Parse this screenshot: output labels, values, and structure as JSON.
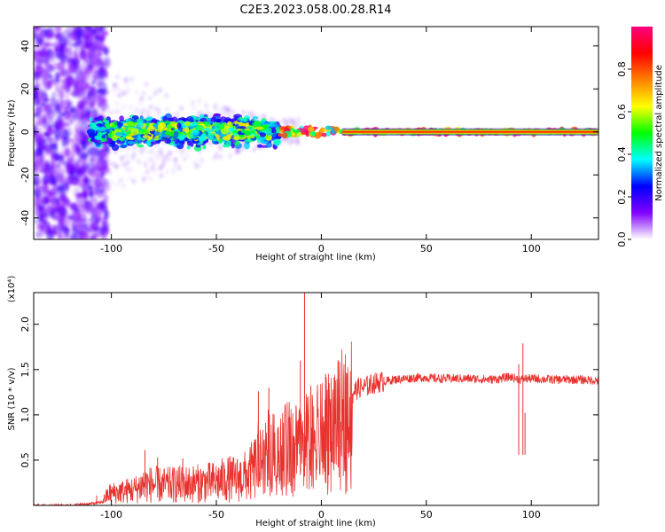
{
  "title": "C2E3.2023.058.00.28.R14",
  "chart_data": [
    {
      "type": "heatmap",
      "name": "spectrogram",
      "xlabel": "Height of straight line (km)",
      "ylabel": "Frequency (Hz)",
      "xlim": [
        -137,
        132
      ],
      "ylim": [
        -50,
        49
      ],
      "xticks": [
        -100,
        -50,
        0,
        50,
        100
      ],
      "xtick_labels": [
        "-100",
        "-50",
        "0",
        "50",
        "100"
      ],
      "yticks": [
        -40,
        -20,
        0,
        20,
        40
      ],
      "ytick_labels": [
        "-40",
        "-20",
        "0",
        "20",
        "40"
      ],
      "colorbar": {
        "label": "Normalized spectral amplitude",
        "range": [
          0,
          1
        ],
        "ticks": [
          0.0,
          0.2,
          0.4,
          0.6,
          0.8
        ],
        "tick_labels": [
          "0.0",
          "0.2",
          "0.4",
          "0.6",
          "0.8"
        ],
        "colors": [
          "#ffffff",
          "#8000ff",
          "#0000ff",
          "#00ffff",
          "#00ff00",
          "#ffff00",
          "#ff8000",
          "#ff0000",
          "#ff0080"
        ]
      },
      "regions": [
        {
          "x_range": [
            -137,
            -102
          ],
          "y_range": [
            -50,
            49
          ],
          "amplitude": 0.15,
          "note": "broadband noise"
        },
        {
          "x_range": [
            -110,
            -20
          ],
          "y_range": [
            -8,
            8
          ],
          "amplitude": 0.35
        },
        {
          "x_range": [
            -100,
            -25
          ],
          "y_range": [
            -3,
            4
          ],
          "amplitude": 0.5
        },
        {
          "x_range": [
            -20,
            10
          ],
          "y_range": [
            -2,
            2
          ],
          "amplitude": 0.75
        },
        {
          "x_range": [
            10,
            132
          ],
          "y_range": [
            -1,
            1
          ],
          "amplitude": 0.95
        }
      ]
    },
    {
      "type": "line",
      "name": "snr",
      "xlabel": "Height of straight line (km)",
      "ylabel": "SNR (10 * v/v)",
      "multiplier": "(x10⁴)",
      "xlim": [
        -137,
        132
      ],
      "ylim": [
        0,
        23500
      ],
      "xticks": [
        -100,
        -50,
        0,
        50,
        100
      ],
      "xtick_labels": [
        "-100",
        "-50",
        "0",
        "50",
        "100"
      ],
      "yticks": [
        5000,
        10000,
        15000,
        20000
      ],
      "ytick_labels": [
        "0.5",
        "1.0",
        "1.5",
        "2.0"
      ],
      "color": "#e8322e",
      "series": [
        {
          "x": [
            -137,
            -120,
            -105,
            -101,
            -95,
            -88,
            -85,
            -80,
            -75,
            -70,
            -60,
            -50,
            -45,
            -40,
            -35,
            -32,
            -30,
            -28,
            -25,
            -22,
            -18,
            -15,
            -12,
            -10,
            -8,
            -5,
            -3,
            0,
            3,
            5,
            8,
            10,
            12,
            15,
            18,
            20,
            25,
            30,
            35,
            40,
            45,
            50,
            55,
            60,
            70,
            80,
            85,
            90,
            93,
            95,
            97,
            100,
            110,
            120,
            132
          ],
          "y": [
            0,
            0,
            300,
            1300,
            1500,
            1800,
            2300,
            2300,
            2200,
            2300,
            2400,
            2600,
            2900,
            2900,
            3300,
            4000,
            5000,
            6500,
            7000,
            6500,
            7000,
            7800,
            8000,
            8400,
            8000,
            8200,
            8500,
            8800,
            9300,
            10000,
            10500,
            11200,
            11700,
            12500,
            13000,
            13000,
            13500,
            13700,
            13900,
            14000,
            14100,
            14100,
            14000,
            14000,
            14000,
            13900,
            14000,
            14200,
            14000,
            13900,
            14000,
            14000,
            13900,
            13900,
            13800
          ]
        }
      ],
      "spikes": [
        {
          "x": -107,
          "y": 1100
        },
        {
          "x": -96,
          "y": 2300
        },
        {
          "x": -84,
          "y": 6100
        },
        {
          "x": -78,
          "y": 5300
        },
        {
          "x": -66,
          "y": 5200
        },
        {
          "x": -46,
          "y": 4000
        },
        {
          "x": -30,
          "y": 12600
        },
        {
          "x": -25,
          "y": 13000
        },
        {
          "x": -10,
          "y": 16000
        },
        {
          "x": -8,
          "y": 23500
        },
        {
          "x": -5,
          "y": 13200
        },
        {
          "x": 2,
          "y": 14500
        },
        {
          "x": 8,
          "y": 15900
        },
        {
          "x": 12,
          "y": 14200
        },
        {
          "x": 96,
          "y": 17900
        },
        {
          "x": 97,
          "y": 10200
        },
        {
          "x": 94,
          "y": 15600
        }
      ]
    }
  ]
}
